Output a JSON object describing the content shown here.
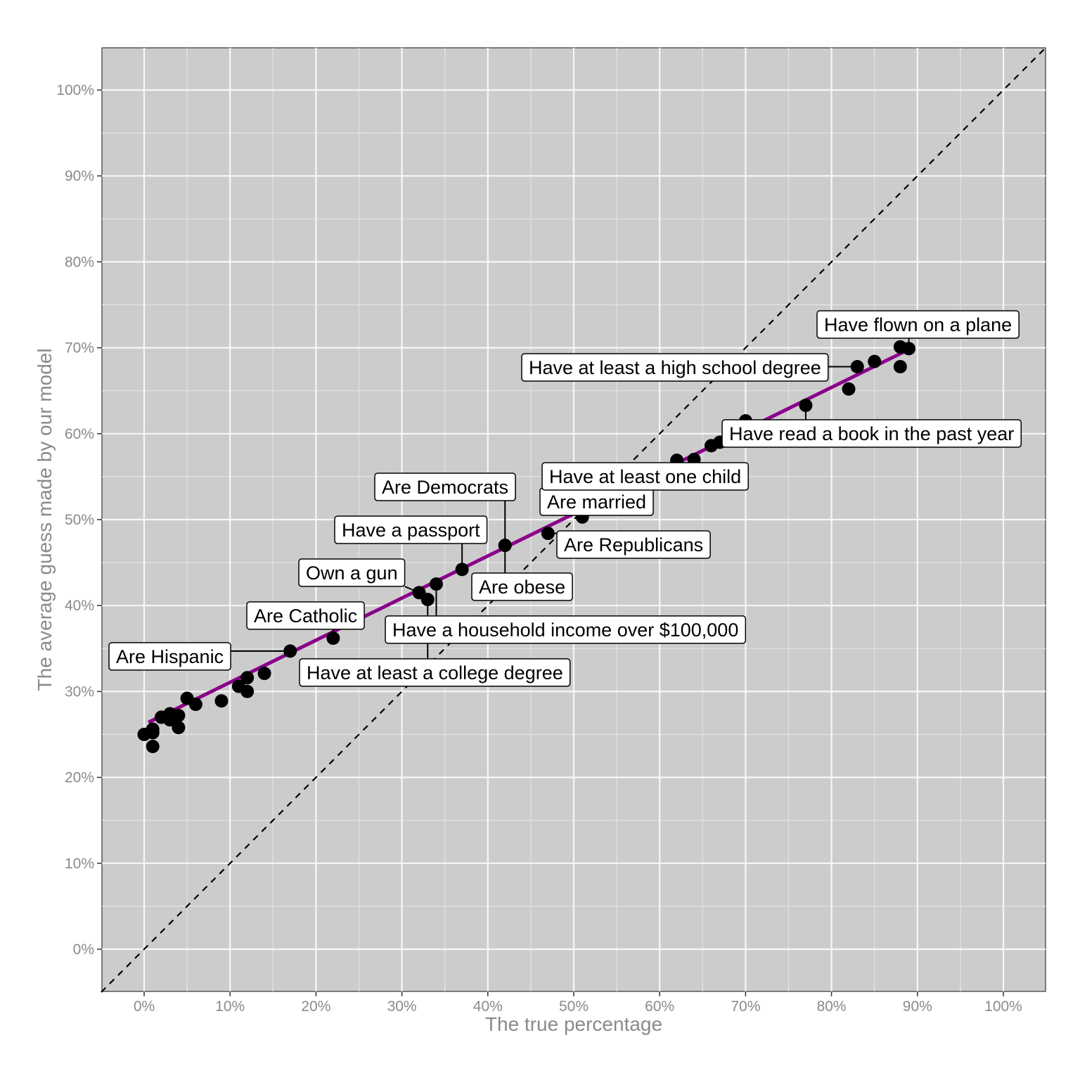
{
  "chart_data": {
    "type": "scatter",
    "title": "",
    "xlabel": "The true percentage",
    "ylabel": "The average guess made by our model",
    "xlim": [
      -0.05,
      1.05
    ],
    "ylim": [
      -0.05,
      1.05
    ],
    "ticks": {
      "values": [
        0,
        0.1,
        0.2,
        0.3,
        0.4,
        0.5,
        0.6,
        0.7,
        0.8,
        0.9,
        1.0
      ],
      "labels": [
        "0%",
        "10%",
        "20%",
        "30%",
        "40%",
        "50%",
        "60%",
        "70%",
        "80%",
        "90%",
        "100%"
      ]
    },
    "grid": true,
    "reference_line": {
      "slope": 1,
      "intercept": 0,
      "style": "dashed",
      "color": "#000000"
    },
    "fit_line": {
      "x": [
        0.005,
        0.89
      ],
      "y": [
        0.264,
        0.698
      ],
      "color": "#8b008b"
    },
    "points": [
      {
        "x": 0.0,
        "y": 0.25,
        "label": ""
      },
      {
        "x": 0.01,
        "y": 0.236,
        "label": ""
      },
      {
        "x": 0.01,
        "y": 0.252,
        "label": ""
      },
      {
        "x": 0.01,
        "y": 0.256,
        "label": ""
      },
      {
        "x": 0.02,
        "y": 0.27,
        "label": ""
      },
      {
        "x": 0.03,
        "y": 0.274,
        "label": ""
      },
      {
        "x": 0.03,
        "y": 0.267,
        "label": ""
      },
      {
        "x": 0.04,
        "y": 0.272,
        "label": ""
      },
      {
        "x": 0.04,
        "y": 0.258,
        "label": ""
      },
      {
        "x": 0.05,
        "y": 0.292,
        "label": ""
      },
      {
        "x": 0.06,
        "y": 0.285,
        "label": ""
      },
      {
        "x": 0.09,
        "y": 0.289,
        "label": ""
      },
      {
        "x": 0.11,
        "y": 0.306,
        "label": ""
      },
      {
        "x": 0.12,
        "y": 0.316,
        "label": ""
      },
      {
        "x": 0.12,
        "y": 0.3,
        "label": ""
      },
      {
        "x": 0.14,
        "y": 0.321,
        "label": ""
      },
      {
        "x": 0.17,
        "y": 0.347,
        "label": "Are Hispanic"
      },
      {
        "x": 0.22,
        "y": 0.362,
        "label": "Are Catholic"
      },
      {
        "x": 0.32,
        "y": 0.415,
        "label": "Own a gun"
      },
      {
        "x": 0.33,
        "y": 0.407,
        "label": "Have at least a college degree"
      },
      {
        "x": 0.34,
        "y": 0.425,
        "label": "Have a household income over $100,000"
      },
      {
        "x": 0.37,
        "y": 0.442,
        "label": "Have a passport"
      },
      {
        "x": 0.42,
        "y": 0.47,
        "label": "Are Democrats"
      },
      {
        "x": 0.42,
        "y": 0.47,
        "label": "Are obese"
      },
      {
        "x": 0.47,
        "y": 0.484,
        "label": "Are Republicans"
      },
      {
        "x": 0.51,
        "y": 0.503,
        "label": "Are married"
      },
      {
        "x": 0.62,
        "y": 0.569,
        "label": ""
      },
      {
        "x": 0.64,
        "y": 0.57,
        "label": "Have at least one child"
      },
      {
        "x": 0.66,
        "y": 0.586,
        "label": ""
      },
      {
        "x": 0.67,
        "y": 0.59,
        "label": ""
      },
      {
        "x": 0.7,
        "y": 0.615,
        "label": ""
      },
      {
        "x": 0.77,
        "y": 0.633,
        "label": "Have read a book in the past year"
      },
      {
        "x": 0.82,
        "y": 0.652,
        "label": ""
      },
      {
        "x": 0.83,
        "y": 0.678,
        "label": "Have at least a high school degree"
      },
      {
        "x": 0.85,
        "y": 0.684,
        "label": ""
      },
      {
        "x": 0.88,
        "y": 0.678,
        "label": ""
      },
      {
        "x": 0.88,
        "y": 0.701,
        "label": ""
      },
      {
        "x": 0.89,
        "y": 0.699,
        "label": "Have flown on a plane"
      }
    ]
  }
}
